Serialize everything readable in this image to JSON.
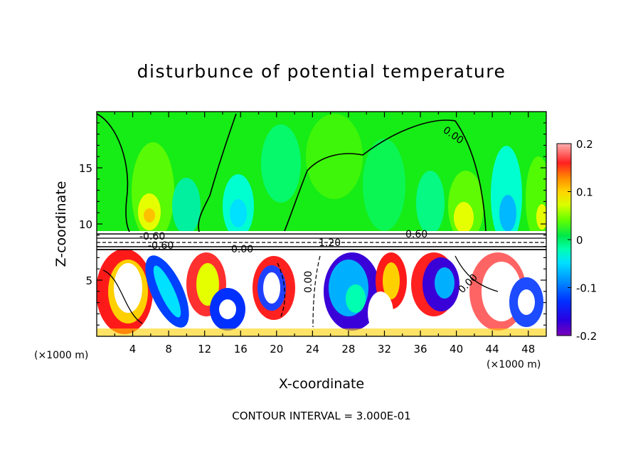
{
  "chart_data": {
    "type": "heatmap",
    "title": "disturbunce of potential temperature",
    "xlabel": "X-coordinate",
    "ylabel": "Z-coordinate",
    "x_unit_left": "(×1000 m)",
    "x_unit_right": "(×1000 m)",
    "xlim": [
      0,
      50
    ],
    "ylim": [
      0,
      20
    ],
    "x_ticks": [
      "4",
      "8",
      "12",
      "16",
      "20",
      "24",
      "28",
      "32",
      "36",
      "40",
      "44",
      "48"
    ],
    "y_ticks": [
      "5",
      "10",
      "15"
    ],
    "colorbar": {
      "range": [
        -0.2,
        0.2
      ],
      "ticks": [
        "0.2",
        "0.1",
        "0",
        "-0.1",
        "-0.2"
      ],
      "colors": [
        "#7a00b8",
        "#3a00d8",
        "#0000ff",
        "#1d6bff",
        "#00b2ff",
        "#00e6e6",
        "#00ffb4",
        "#00e64c",
        "#4cff00",
        "#a8ff00",
        "#e6ff00",
        "#ffd200",
        "#ff9600",
        "#ff5000",
        "#ff1a1a",
        "#ff6464",
        "#ffa0a0"
      ]
    },
    "contour_labels": [
      "0.00",
      "-0.60",
      "-0.60",
      "0.60",
      "1.20",
      "0.00",
      "0.00",
      "0.60",
      "0.00"
    ],
    "footer": "CONTOUR INTERVAL = 3.000E-01"
  }
}
